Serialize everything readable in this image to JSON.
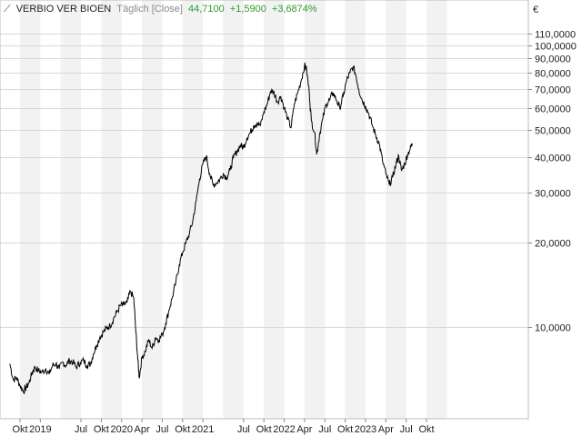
{
  "header": {
    "instrument": "VERBIO VER BIOEN",
    "mode": "Täglich [Close]",
    "last": "44,7100",
    "change_abs": "+1,5900",
    "change_pct": "+3,6874%"
  },
  "colors": {
    "positive": "#2e9b2e",
    "line": "#000000",
    "band": "#f2f2f2",
    "grid": "#d8d8d8"
  },
  "chart_data": {
    "type": "line",
    "y_scale": "log",
    "currency": "€",
    "ylim": [
      5.6,
      125
    ],
    "y_ticks": [
      {
        "v": 110,
        "label": "110,0000"
      },
      {
        "v": 100,
        "label": "100,0000"
      },
      {
        "v": 90,
        "label": "90,0000"
      },
      {
        "v": 80,
        "label": "80,0000"
      },
      {
        "v": 70,
        "label": "70,0000"
      },
      {
        "v": 60,
        "label": "60,0000"
      },
      {
        "v": 50,
        "label": "50,0000"
      },
      {
        "v": 40,
        "label": "40,0000"
      },
      {
        "v": 30,
        "label": "30,0000"
      },
      {
        "v": 20,
        "label": "20,0000"
      },
      {
        "v": 10,
        "label": "10,0000"
      }
    ],
    "x_ticks": [
      {
        "t": 0,
        "label": "Okt"
      },
      {
        "t": 3,
        "label": "2019"
      },
      {
        "t": 9,
        "label": "Jul"
      },
      {
        "t": 12,
        "label": "Okt"
      },
      {
        "t": 15,
        "label": "2020"
      },
      {
        "t": 18,
        "label": "Apr"
      },
      {
        "t": 21,
        "label": "Jul"
      },
      {
        "t": 24,
        "label": "Okt"
      },
      {
        "t": 27,
        "label": "2021"
      },
      {
        "t": 33,
        "label": "Jul"
      },
      {
        "t": 36,
        "label": "Okt"
      },
      {
        "t": 39,
        "label": "2022"
      },
      {
        "t": 42,
        "label": "Apr"
      },
      {
        "t": 45,
        "label": "Jul"
      },
      {
        "t": 48,
        "label": "Okt"
      },
      {
        "t": 51,
        "label": "2023"
      },
      {
        "t": 54,
        "label": "Apr"
      },
      {
        "t": 57,
        "label": "Jul"
      },
      {
        "t": 60,
        "label": "Okt"
      }
    ],
    "x_range": [
      -1.5,
      61.5
    ],
    "series": [
      {
        "values": [
          [
            -1.5,
            7.4
          ],
          [
            -1,
            6.5
          ],
          [
            -0.5,
            6.6
          ],
          [
            0,
            6.2
          ],
          [
            0.5,
            5.9
          ],
          [
            0.9,
            6.1
          ],
          [
            1.3,
            6.3
          ],
          [
            1.8,
            6.9
          ],
          [
            2.2,
            7.2
          ],
          [
            2.7,
            7.0
          ],
          [
            3.2,
            6.9
          ],
          [
            3.8,
            7.1
          ],
          [
            4.3,
            6.8
          ],
          [
            4.8,
            7.3
          ],
          [
            5.3,
            7.4
          ],
          [
            5.8,
            7.1
          ],
          [
            6.3,
            7.5
          ],
          [
            6.8,
            7.3
          ],
          [
            7.3,
            7.6
          ],
          [
            7.8,
            7.5
          ],
          [
            8.3,
            7.2
          ],
          [
            8.9,
            7.5
          ],
          [
            9.4,
            7.6
          ],
          [
            9.9,
            7.3
          ],
          [
            10.4,
            7.4
          ],
          [
            10.8,
            8.0
          ],
          [
            11.3,
            8.6
          ],
          [
            11.8,
            9.2
          ],
          [
            12.3,
            9.6
          ],
          [
            12.8,
            9.9
          ],
          [
            13.3,
            10.1
          ],
          [
            13.8,
            10.7
          ],
          [
            14.3,
            11.3
          ],
          [
            14.8,
            11.9
          ],
          [
            15.3,
            12.0
          ],
          [
            15.8,
            12.2
          ],
          [
            16.3,
            13.4
          ],
          [
            16.8,
            12.6
          ],
          [
            17.1,
            9.6
          ],
          [
            17.4,
            7.6
          ],
          [
            17.6,
            6.6
          ],
          [
            18.0,
            7.8
          ],
          [
            18.5,
            8.2
          ],
          [
            19.0,
            9.0
          ],
          [
            19.5,
            8.4
          ],
          [
            20.0,
            9.2
          ],
          [
            20.5,
            9.0
          ],
          [
            21.0,
            9.4
          ],
          [
            21.5,
            10.3
          ],
          [
            22.0,
            11.5
          ],
          [
            22.5,
            12.8
          ],
          [
            23.0,
            14.4
          ],
          [
            23.5,
            16.6
          ],
          [
            24.0,
            18.4
          ],
          [
            24.5,
            19.9
          ],
          [
            25.0,
            21.5
          ],
          [
            25.5,
            23.8
          ],
          [
            26.0,
            28.0
          ],
          [
            26.5,
            33.5
          ],
          [
            27.0,
            38.0
          ],
          [
            27.5,
            40.5
          ],
          [
            28.0,
            35.0
          ],
          [
            28.5,
            32.0
          ],
          [
            29.0,
            32.5
          ],
          [
            29.5,
            33.5
          ],
          [
            30.0,
            35.0
          ],
          [
            30.5,
            34.0
          ],
          [
            31.0,
            36.0
          ],
          [
            31.5,
            40.0
          ],
          [
            32.0,
            42.0
          ],
          [
            32.5,
            44.0
          ],
          [
            33.0,
            43.5
          ],
          [
            33.5,
            47.0
          ],
          [
            34.0,
            49.0
          ],
          [
            34.5,
            52.0
          ],
          [
            35.0,
            53.0
          ],
          [
            35.5,
            52.0
          ],
          [
            36.0,
            58.0
          ],
          [
            36.5,
            62.0
          ],
          [
            37.0,
            69.0
          ],
          [
            37.5,
            68.0
          ],
          [
            38.0,
            63.0
          ],
          [
            38.5,
            66.0
          ],
          [
            39.0,
            60.0
          ],
          [
            39.5,
            55.0
          ],
          [
            40.0,
            51.0
          ],
          [
            40.5,
            62.0
          ],
          [
            41.0,
            68.0
          ],
          [
            41.5,
            75.0
          ],
          [
            42.0,
            85.0
          ],
          [
            42.3,
            82.0
          ],
          [
            42.7,
            68.0
          ],
          [
            43.0,
            54.0
          ],
          [
            43.5,
            49.0
          ],
          [
            43.8,
            41.0
          ],
          [
            44.2,
            48.0
          ],
          [
            44.7,
            55.0
          ],
          [
            45.2,
            62.0
          ],
          [
            45.7,
            64.0
          ],
          [
            46.2,
            68.0
          ],
          [
            46.7,
            64.0
          ],
          [
            47.2,
            60.0
          ],
          [
            47.7,
            66.0
          ],
          [
            48.2,
            75.0
          ],
          [
            48.7,
            80.0
          ],
          [
            49.2,
            84.0
          ],
          [
            49.6,
            78.0
          ],
          [
            50.0,
            70.0
          ],
          [
            50.5,
            64.0
          ],
          [
            51.0,
            61.0
          ],
          [
            51.5,
            57.0
          ],
          [
            52.0,
            52.0
          ],
          [
            52.5,
            48.0
          ],
          [
            53.0,
            45.0
          ],
          [
            53.5,
            39.0
          ],
          [
            54.0,
            35.0
          ],
          [
            54.5,
            32.0
          ],
          [
            55.0,
            34.0
          ],
          [
            55.5,
            38.0
          ],
          [
            55.9,
            40.5
          ],
          [
            56.3,
            36.0
          ],
          [
            56.8,
            38.0
          ],
          [
            57.2,
            41.0
          ],
          [
            57.6,
            43.0
          ],
          [
            57.9,
            44.71
          ]
        ]
      }
    ]
  }
}
